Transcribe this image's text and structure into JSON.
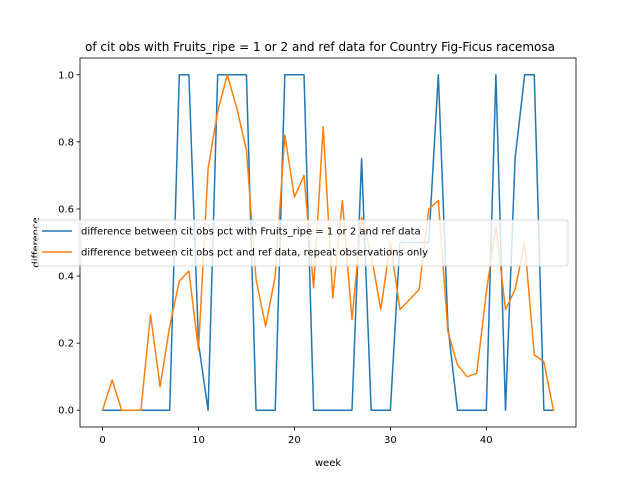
{
  "chart_data": {
    "type": "line",
    "title": "of cit obs with Fruits_ripe = 1 or 2 and ref data for Country Fig-Ficus racemosa",
    "xlabel": "week",
    "ylabel": "difference",
    "xlim": [
      -2.35,
      49.35
    ],
    "ylim": [
      -0.05,
      1.05
    ],
    "xticks": [
      0,
      10,
      20,
      30,
      40
    ],
    "yticks": [
      0.0,
      0.2,
      0.4,
      0.6,
      0.8,
      1.0
    ],
    "xtick_labels": [
      "0",
      "10",
      "20",
      "30",
      "40"
    ],
    "ytick_labels": [
      "0.0",
      "0.2",
      "0.4",
      "0.6",
      "0.8",
      "1.0"
    ],
    "legend_position": "center-left",
    "series": [
      {
        "name": "difference between cit obs pct with Fruits_ripe = 1 or 2 and ref data",
        "color": "#1f77b4",
        "x": [
          0,
          1,
          2,
          3,
          4,
          5,
          6,
          7,
          8,
          9,
          10,
          11,
          12,
          13,
          14,
          15,
          16,
          17,
          18,
          19,
          20,
          21,
          22,
          23,
          24,
          25,
          26,
          27,
          28,
          29,
          30,
          31,
          32,
          33,
          34,
          35,
          36,
          37,
          38,
          39,
          40,
          41,
          42,
          43,
          44,
          45,
          46,
          47
        ],
        "y": [
          0,
          0,
          0,
          0,
          0,
          0,
          0,
          0,
          1,
          1,
          0.2,
          0,
          1,
          1,
          1,
          1,
          0,
          0,
          0,
          1,
          1,
          1,
          0,
          0,
          0,
          0,
          0,
          0.75,
          0,
          0,
          0,
          0.5,
          0.5,
          0.5,
          0.5,
          1,
          0.25,
          0,
          0,
          0,
          0,
          1,
          0,
          0.75,
          1,
          1,
          0,
          0
        ]
      },
      {
        "name": "difference between cit obs pct and ref data, repeat observations only",
        "color": "#ff7f0e",
        "x": [
          0,
          1,
          2,
          3,
          4,
          5,
          6,
          7,
          8,
          9,
          10,
          11,
          12,
          13,
          14,
          15,
          16,
          17,
          18,
          19,
          20,
          21,
          22,
          23,
          24,
          25,
          26,
          27,
          28,
          29,
          30,
          31,
          32,
          33,
          34,
          35,
          36,
          37,
          38,
          39,
          40,
          41,
          42,
          43,
          44,
          45,
          46,
          47
        ],
        "y": [
          0,
          0.09,
          0,
          0,
          0,
          0.285,
          0.07,
          0.25,
          0.385,
          0.415,
          0.18,
          0.72,
          0.89,
          1,
          0.9,
          0.775,
          0.39,
          0.25,
          0.4,
          0.82,
          0.635,
          0.7,
          0.365,
          0.845,
          0.335,
          0.625,
          0.27,
          0.575,
          0.465,
          0.3,
          0.5,
          0.3,
          0.33,
          0.36,
          0.6,
          0.625,
          0.235,
          0.135,
          0.1,
          0.11,
          0.35,
          0.55,
          0.3,
          0.36,
          0.5,
          0.165,
          0.145,
          0
        ]
      }
    ]
  }
}
